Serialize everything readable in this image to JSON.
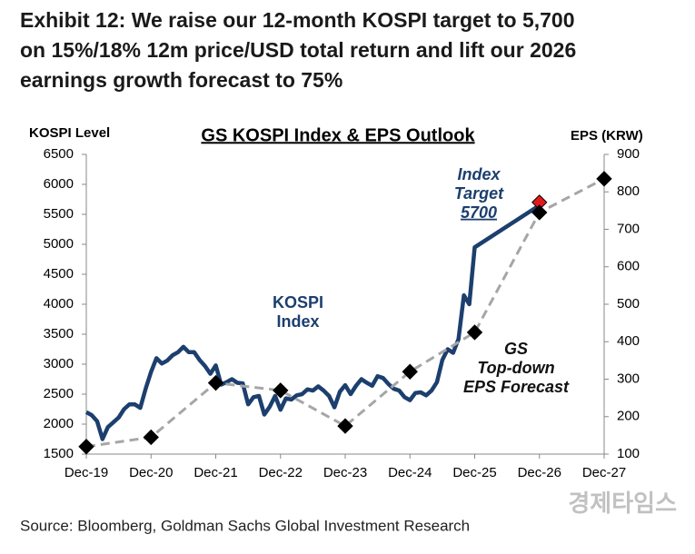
{
  "chart_data": {
    "type": "line",
    "title_lines": [
      "Exhibit 12: We raise our 12-month KOSPI target to 5,700",
      "on 15%/18% 12m price/USD total return and lift our 2026",
      "earnings growth forecast to 75%"
    ],
    "subtitle": "GS KOSPI Index & EPS Outlook",
    "y_label": "KOSPI Level",
    "y2_label": "EPS (KRW)",
    "source": "Source: Bloomberg, Goldman Sachs Global Investment Research",
    "watermark": "경제타임스",
    "xlim": [
      "2019-12",
      "2027-12"
    ],
    "xticks": [
      {
        "value": "2019-12",
        "label": "Dec-19"
      },
      {
        "value": "2020-12",
        "label": "Dec-20"
      },
      {
        "value": "2021-12",
        "label": "Dec-21"
      },
      {
        "value": "2022-12",
        "label": "Dec-22"
      },
      {
        "value": "2023-12",
        "label": "Dec-23"
      },
      {
        "value": "2024-12",
        "label": "Dec-24"
      },
      {
        "value": "2025-12",
        "label": "Dec-25"
      },
      {
        "value": "2026-12",
        "label": "Dec-26"
      },
      {
        "value": "2027-12",
        "label": "Dec-27"
      }
    ],
    "ylim": [
      1500,
      6500
    ],
    "yticks": [
      1500,
      2000,
      2500,
      3000,
      3500,
      4000,
      4500,
      5000,
      5500,
      6000,
      6500
    ],
    "y2lim": [
      100,
      900
    ],
    "y2ticks": [
      100,
      200,
      300,
      400,
      500,
      600,
      700,
      800,
      900
    ],
    "series": [
      {
        "name": "KOSPI Index",
        "color": "#1c3f6e",
        "style": "solid",
        "x": [
          "2019-12",
          "2020-01",
          "2020-02",
          "2020-03",
          "2020-04",
          "2020-05",
          "2020-06",
          "2020-07",
          "2020-08",
          "2020-09",
          "2020-10",
          "2020-11",
          "2020-12",
          "2021-01",
          "2021-02",
          "2021-03",
          "2021-04",
          "2021-05",
          "2021-06",
          "2021-07",
          "2021-08",
          "2021-09",
          "2021-10",
          "2021-11",
          "2021-12",
          "2022-01",
          "2022-02",
          "2022-03",
          "2022-04",
          "2022-05",
          "2022-06",
          "2022-07",
          "2022-08",
          "2022-09",
          "2022-10",
          "2022-11",
          "2022-12",
          "2023-01",
          "2023-02",
          "2023-03",
          "2023-04",
          "2023-05",
          "2023-06",
          "2023-07",
          "2023-08",
          "2023-09",
          "2023-10",
          "2023-11",
          "2023-12",
          "2024-01",
          "2024-02",
          "2024-03",
          "2024-04",
          "2024-05",
          "2024-06",
          "2024-07",
          "2024-08",
          "2024-09",
          "2024-10",
          "2024-11",
          "2024-12",
          "2025-01",
          "2025-02",
          "2025-03",
          "2025-04",
          "2025-05",
          "2025-06",
          "2025-07",
          "2025-08",
          "2025-09",
          "2025-10",
          "2025-11",
          "2025-12",
          "2026-12"
        ],
        "values": [
          2200,
          2150,
          2050,
          1750,
          1950,
          2030,
          2110,
          2250,
          2330,
          2330,
          2270,
          2590,
          2870,
          3100,
          3010,
          3060,
          3150,
          3200,
          3290,
          3200,
          3200,
          3070,
          2970,
          2840,
          2980,
          2660,
          2700,
          2750,
          2690,
          2680,
          2330,
          2450,
          2470,
          2160,
          2290,
          2470,
          2240,
          2430,
          2410,
          2480,
          2500,
          2580,
          2560,
          2630,
          2560,
          2470,
          2280,
          2540,
          2650,
          2500,
          2640,
          2750,
          2690,
          2640,
          2800,
          2770,
          2670,
          2590,
          2560,
          2450,
          2400,
          2520,
          2530,
          2480,
          2560,
          2700,
          3070,
          3250,
          3190,
          3420,
          4150,
          4000,
          4950,
          5650
        ]
      },
      {
        "name": "Index Target",
        "color": "#e0191b",
        "style": "marker",
        "x": [
          "2026-12"
        ],
        "values": [
          5700
        ]
      },
      {
        "name": "GS Top-down EPS Forecast",
        "color": "#a6a6a6",
        "style": "dashed",
        "axis": "y2",
        "x": [
          "2019-12",
          "2020-12",
          "2021-12",
          "2022-12",
          "2023-12",
          "2024-12",
          "2025-12",
          "2026-12",
          "2027-12"
        ],
        "values": [
          120,
          145,
          290,
          270,
          175,
          320,
          425,
          745,
          835
        ]
      }
    ],
    "annotations": [
      {
        "lines": [
          "KOSPI",
          "Index"
        ],
        "color": "#1c3f6e"
      },
      {
        "lines": [
          "Index",
          "Target",
          "5700"
        ],
        "color": "#1c3f6e"
      },
      {
        "lines": [
          "GS",
          "Top-down",
          "EPS Forecast"
        ],
        "color": "#111111"
      }
    ]
  }
}
